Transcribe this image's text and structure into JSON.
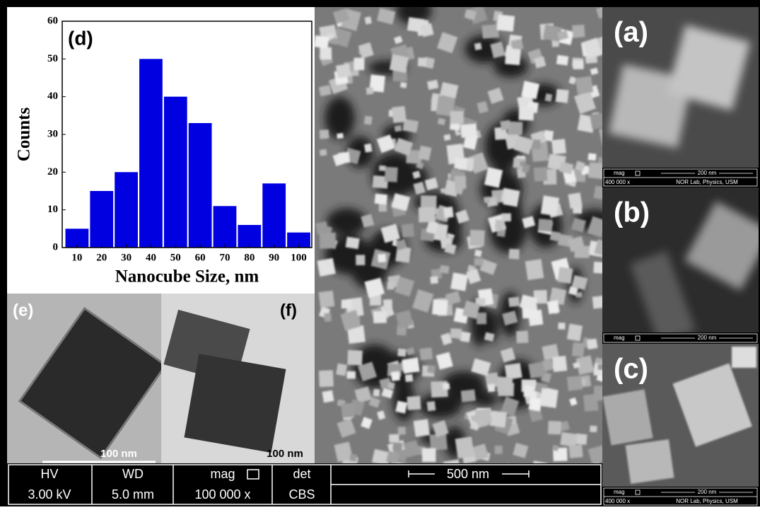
{
  "chart_data": {
    "type": "bar",
    "annotation": "(d)",
    "xlabel": "Nanocube Size, nm",
    "ylabel": "Counts",
    "x": [
      10,
      20,
      30,
      40,
      50,
      60,
      70,
      80,
      90,
      100
    ],
    "values": [
      5,
      15,
      20,
      50,
      40,
      33,
      11,
      6,
      17,
      4
    ],
    "color": "#0000e0",
    "xlim": [
      4,
      105.3
    ],
    "ylim": [
      0,
      60
    ],
    "xticks": [
      10,
      20,
      30,
      40,
      50,
      60,
      70,
      80,
      90,
      100
    ],
    "yticks": [
      0,
      10,
      20,
      30,
      40,
      50,
      60
    ]
  },
  "sem_panels": [
    {
      "label": "(a)",
      "mag": "mag",
      "magnification": "400 000 x",
      "scale": "200 nm",
      "lab": "NOR Lab, Physics, USM"
    },
    {
      "label": "(b)",
      "mag": "mag",
      "scale": "200 nm"
    },
    {
      "label": "(c)",
      "mag": "mag",
      "magnification": "400 000 x",
      "scale": "200 nm",
      "lab": "NOR Lab, Physics, USM"
    }
  ],
  "tem_panels": [
    {
      "label": "(e)",
      "scale": "100 nm"
    },
    {
      "label": "(f)",
      "scale": "100 nm"
    }
  ],
  "info_bar": {
    "headers": [
      "HV",
      "WD",
      "mag",
      "det"
    ],
    "values": [
      "3.00 kV",
      "5.0 mm",
      "100 000 x",
      "CBS"
    ],
    "scale": "500 nm"
  }
}
